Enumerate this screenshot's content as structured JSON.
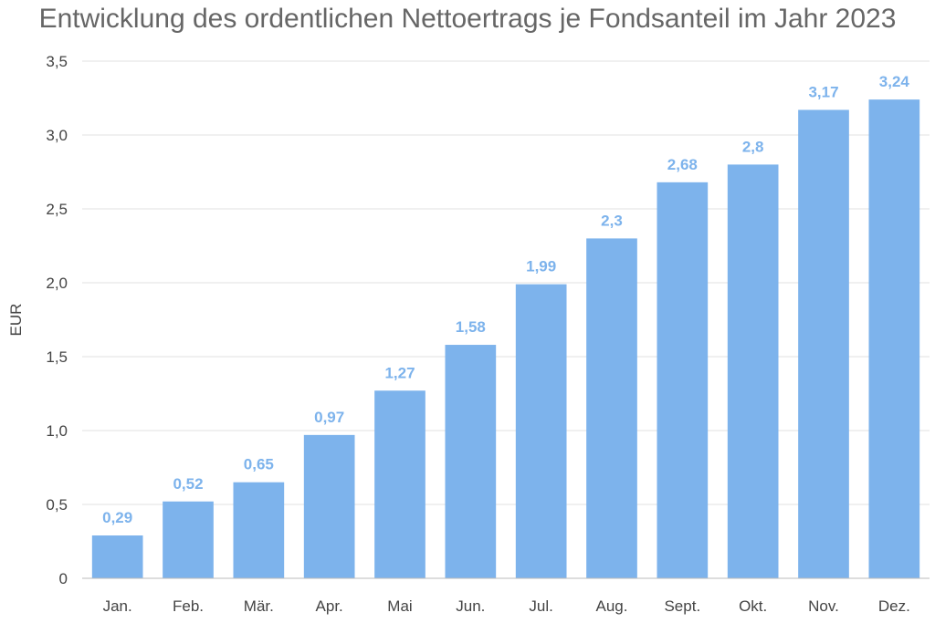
{
  "chart_data": {
    "type": "bar",
    "title": "Entwicklung des ordentlichen Nettoertrags je Fondsanteil im Jahr 2023",
    "xlabel": "",
    "ylabel": "EUR",
    "categories": [
      "Jan.",
      "Feb.",
      "Mär.",
      "Apr.",
      "Mai",
      "Jun.",
      "Jul.",
      "Aug.",
      "Sept.",
      "Okt.",
      "Nov.",
      "Dez."
    ],
    "values": [
      0.29,
      0.52,
      0.65,
      0.97,
      1.27,
      1.58,
      1.99,
      2.3,
      2.68,
      2.8,
      3.17,
      3.24
    ],
    "value_labels": [
      "0,29",
      "0,52",
      "0,65",
      "0,97",
      "1,27",
      "1,58",
      "1,99",
      "2,3",
      "2,68",
      "2,8",
      "3,17",
      "3,24"
    ],
    "ylim": [
      0,
      3.5
    ],
    "yticks": [
      0,
      0.5,
      1.0,
      1.5,
      2.0,
      2.5,
      3.0,
      3.5
    ],
    "ytick_labels": [
      "0",
      "0,5",
      "1,0",
      "1,5",
      "2,0",
      "2,5",
      "3,0",
      "3,5"
    ],
    "grid": true,
    "legend": "none",
    "colors": {
      "bar": "#7db3ec",
      "data_label": "#7db3ec",
      "grid": "#e0e0e0",
      "axis": "#bbbbbb"
    }
  }
}
